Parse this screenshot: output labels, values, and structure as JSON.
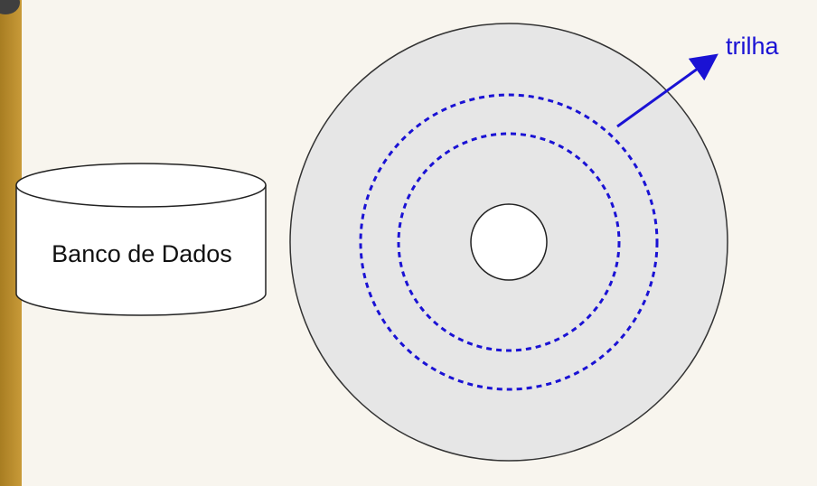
{
  "database": {
    "label": "Banco de Dados"
  },
  "disk": {
    "track_label": "trilha",
    "track_count": 2
  },
  "colors": {
    "disk_fill": "#e6e6e6",
    "track_color": "#1a12d4",
    "label_color": "#1a12d4",
    "background": "#f8f5ee",
    "side_bar": "#b88a2c"
  }
}
